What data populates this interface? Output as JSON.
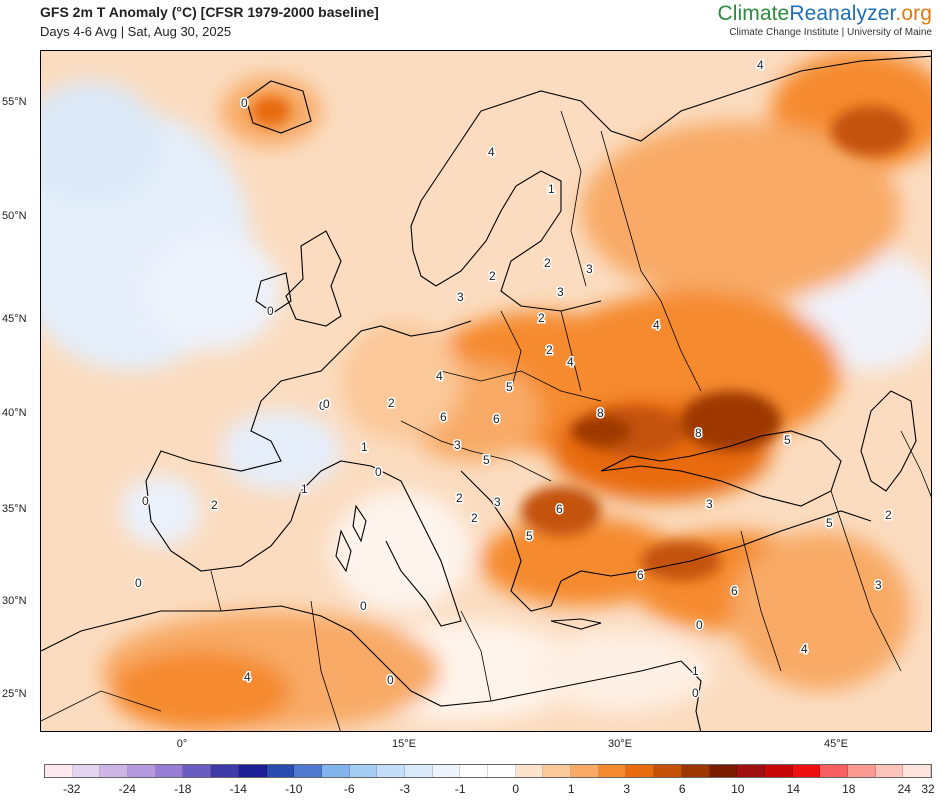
{
  "header": {
    "title": "GFS 2m T Anomaly (°C) [CFSR 1979-2000 baseline]",
    "subtitle": "Days 4-6 Avg | Sat, Aug 30, 2025"
  },
  "brand": {
    "part1": "Climate",
    "part2": "Reanalyzer",
    "part3": ".org",
    "subtitle": "Climate Change Institute | University of Maine"
  },
  "map": {
    "lat_labels": [
      "55°N",
      "50°N",
      "45°N",
      "40°N",
      "35°N",
      "30°N",
      "25°N"
    ],
    "lon_labels": [
      "0°",
      "15°E",
      "30°E",
      "45°E"
    ],
    "contour_labels": [
      "0",
      "4",
      "1",
      "2",
      "2",
      "3",
      "3",
      "2",
      "2",
      "4",
      "4",
      "5",
      "6",
      "8",
      "8",
      "5",
      "2",
      "0",
      "2",
      "4",
      "6",
      "5",
      "3",
      "2",
      "3",
      "6",
      "5",
      "6",
      "3",
      "6",
      "3",
      "0",
      "4",
      "4",
      "0",
      "1",
      "0",
      "0",
      "0",
      "0",
      "2",
      "0",
      "5",
      "1",
      "0",
      "2",
      "0",
      "3",
      "1",
      "4"
    ]
  },
  "colorbar": {
    "colors": [
      "#fde8f0",
      "#e2d4f0",
      "#cdb6e6",
      "#b69ae0",
      "#957ed4",
      "#6a5cc0",
      "#3e3aa8",
      "#1c1e95",
      "#2a4cb0",
      "#4f7ad0",
      "#84b4ee",
      "#a6cdf4",
      "#c2def8",
      "#dbeafa",
      "#eef4fc",
      "#ffffff",
      "#ffffff",
      "#fde2cc",
      "#fbc899",
      "#f8aa66",
      "#f58a2e",
      "#e86b0e",
      "#c45207",
      "#9c3703",
      "#7a1c00",
      "#a01010",
      "#c80808",
      "#ee1010",
      "#f76060",
      "#fa9a90",
      "#fcc4ba",
      "#fde5de"
    ],
    "tick_labels": [
      "-32",
      "-24",
      "-18",
      "-14",
      "-10",
      "-6",
      "-3",
      "-1",
      "0",
      "1",
      "3",
      "6",
      "10",
      "14",
      "18",
      "24",
      "32"
    ]
  }
}
